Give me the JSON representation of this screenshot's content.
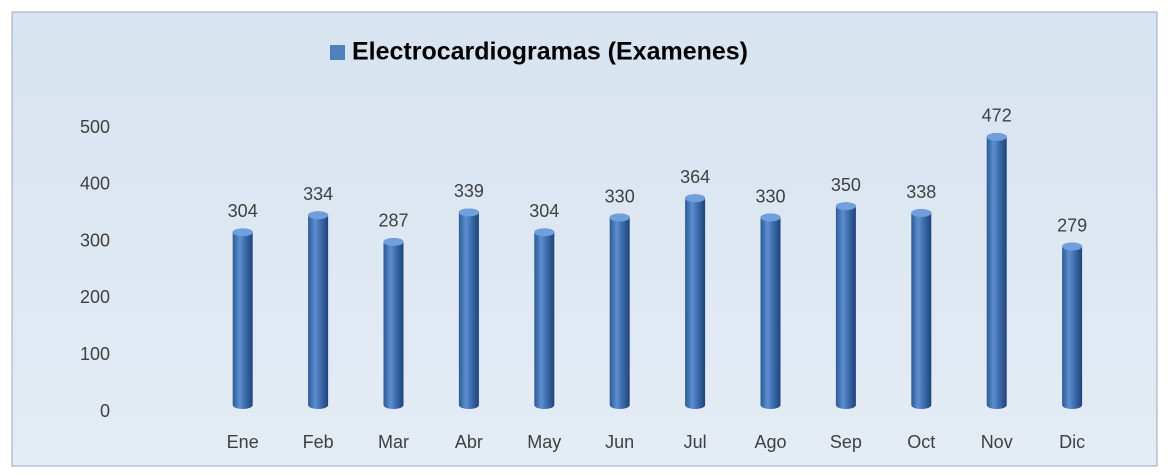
{
  "chart_data": {
    "type": "bar",
    "categories": [
      "Ene",
      "Feb",
      "Mar",
      "Abr",
      "May",
      "Jun",
      "Jul",
      "Ago",
      "Sep",
      "Oct",
      "Nov",
      "Dic"
    ],
    "series": [
      {
        "name": "Electrocardiogramas (Examenes)",
        "color": "#4f81bd",
        "values": [
          304,
          334,
          287,
          339,
          304,
          330,
          364,
          330,
          350,
          338,
          472,
          279
        ]
      }
    ],
    "ylim": [
      0,
      500
    ],
    "yticks": [
      0,
      100,
      200,
      300,
      400,
      500
    ],
    "grid": false,
    "legend": "top"
  }
}
